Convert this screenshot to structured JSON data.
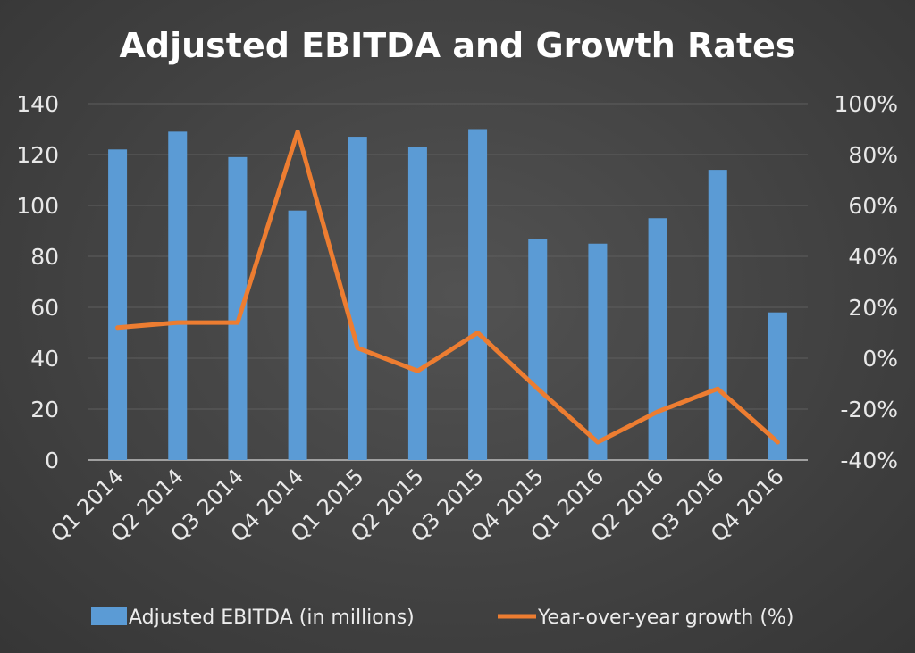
{
  "chart_data": {
    "type": "bar+line",
    "title": "Adjusted EBITDA and Growth Rates",
    "categories": [
      "Q1 2014",
      "Q2 2014",
      "Q3 2014",
      "Q4 2014",
      "Q1 2015",
      "Q2 2015",
      "Q3 2015",
      "Q4 2015",
      "Q1 2016",
      "Q2 2016",
      "Q3 2016",
      "Q4 2016"
    ],
    "series": [
      {
        "name": "Adjusted EBITDA (in millions)",
        "type": "bar",
        "axis": "left",
        "color": "#5b9bd5",
        "values": [
          122,
          129,
          119,
          98,
          127,
          123,
          130,
          87,
          85,
          95,
          114,
          58
        ]
      },
      {
        "name": "Year-over-year growth (%)",
        "type": "line",
        "axis": "right",
        "color": "#ed7d31",
        "values": [
          12,
          14,
          14,
          89,
          4,
          -5,
          10,
          -12,
          -33,
          -21,
          -12,
          -33
        ]
      }
    ],
    "left_axis": {
      "ylim": [
        0,
        140
      ],
      "ticks": [
        "0",
        "20",
        "40",
        "60",
        "80",
        "100",
        "120",
        "140"
      ]
    },
    "right_axis": {
      "ylim": [
        -40,
        100
      ],
      "ticks": [
        "-40%",
        "-20%",
        "0%",
        "20%",
        "40%",
        "60%",
        "80%",
        "100%"
      ]
    },
    "grid": true,
    "legend": "bottom"
  }
}
